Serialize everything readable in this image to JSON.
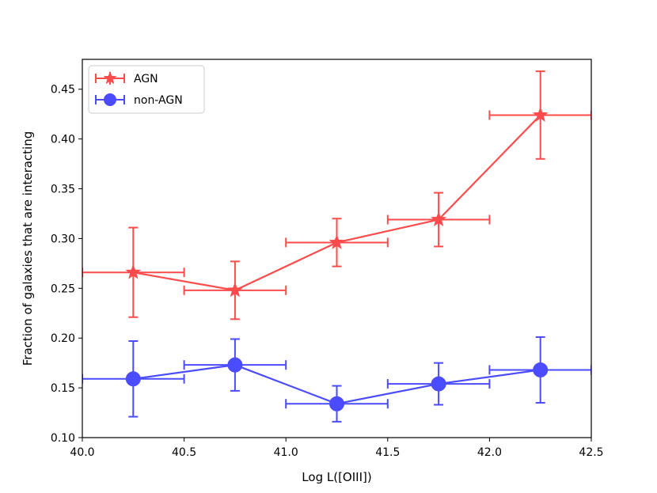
{
  "chart_data": {
    "type": "line",
    "xlabel": "Log L([OIII])",
    "ylabel": "Fraction of galaxies that are interacting",
    "xlim": [
      40.0,
      42.5
    ],
    "ylim": [
      0.1,
      0.48
    ],
    "xticks": [
      40.0,
      40.5,
      41.0,
      41.5,
      42.0,
      42.5
    ],
    "xtick_labels": [
      "40.0",
      "40.5",
      "41.0",
      "41.5",
      "42.0",
      "42.5"
    ],
    "yticks": [
      0.1,
      0.15,
      0.2,
      0.25,
      0.3,
      0.35,
      0.4,
      0.45
    ],
    "ytick_labels": [
      "0.10",
      "0.15",
      "0.20",
      "0.25",
      "0.30",
      "0.35",
      "0.40",
      "0.45"
    ],
    "legend_position": "top-left",
    "series": [
      {
        "name": "AGN",
        "color": "#ff0000",
        "marker": "star",
        "x": [
          40.25,
          40.75,
          41.25,
          41.75,
          42.25
        ],
        "y": [
          0.266,
          0.248,
          0.296,
          0.319,
          0.424
        ],
        "xerr": 0.25,
        "yerr": [
          0.045,
          0.029,
          0.024,
          0.027,
          0.044
        ]
      },
      {
        "name": "non-AGN",
        "color": "#0000ff",
        "marker": "circle",
        "x": [
          40.25,
          40.75,
          41.25,
          41.75,
          42.25
        ],
        "y": [
          0.159,
          0.173,
          0.134,
          0.154,
          0.168
        ],
        "xerr": 0.25,
        "yerr": [
          0.038,
          0.026,
          0.018,
          0.021,
          0.033
        ]
      }
    ]
  }
}
